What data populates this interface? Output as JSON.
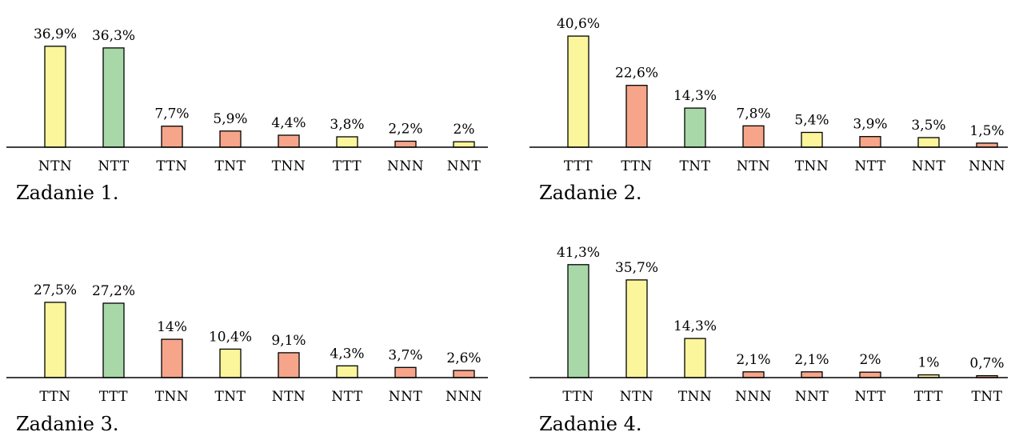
{
  "colors": {
    "yellow": "#fbf59b",
    "green": "#a8d8a8",
    "red": "#f6a58a"
  },
  "chart_data": [
    {
      "type": "bar",
      "caption": "Zadanie 1.",
      "categories": [
        "NTN",
        "NTT",
        "TTN",
        "TNT",
        "TNN",
        "TTT",
        "NNN",
        "NNT"
      ],
      "values": [
        36.9,
        36.3,
        7.7,
        5.9,
        4.4,
        3.8,
        2.2,
        2.0
      ],
      "labels": [
        "36,9%",
        "36,3%",
        "7,7%",
        "5,9%",
        "4,4%",
        "3,8%",
        "2,2%",
        "2%"
      ],
      "colors": [
        "yellow",
        "green",
        "red",
        "red",
        "red",
        "yellow",
        "red",
        "yellow"
      ]
    },
    {
      "type": "bar",
      "caption": "Zadanie 2.",
      "categories": [
        "TTT",
        "TTN",
        "TNT",
        "NTN",
        "TNN",
        "NTT",
        "NNT",
        "NNN"
      ],
      "values": [
        40.6,
        22.6,
        14.3,
        7.8,
        5.4,
        3.9,
        3.5,
        1.5
      ],
      "labels": [
        "40,6%",
        "22,6%",
        "14,3%",
        "7,8%",
        "5,4%",
        "3,9%",
        "3,5%",
        "1,5%"
      ],
      "colors": [
        "yellow",
        "red",
        "green",
        "red",
        "yellow",
        "red",
        "yellow",
        "red"
      ]
    },
    {
      "type": "bar",
      "caption": "Zadanie 3.",
      "categories": [
        "TTN",
        "TTT",
        "TNN",
        "TNT",
        "NTN",
        "NTT",
        "NNT",
        "NNN"
      ],
      "values": [
        27.5,
        27.2,
        14.0,
        10.4,
        9.1,
        4.3,
        3.7,
        2.6
      ],
      "labels": [
        "27,5%",
        "27,2%",
        "14%",
        "10,4%",
        "9,1%",
        "4,3%",
        "3,7%",
        "2,6%"
      ],
      "colors": [
        "yellow",
        "green",
        "red",
        "yellow",
        "red",
        "yellow",
        "red",
        "red"
      ]
    },
    {
      "type": "bar",
      "caption": "Zadanie 4.",
      "categories": [
        "TTN",
        "NTN",
        "TNN",
        "NNN",
        "NNT",
        "NTT",
        "TTT",
        "TNT"
      ],
      "values": [
        41.3,
        35.7,
        14.3,
        2.1,
        2.1,
        2.0,
        1.0,
        0.7
      ],
      "labels": [
        "41,3%",
        "35,7%",
        "14,3%",
        "2,1%",
        "2,1%",
        "2%",
        "1%",
        "0,7%"
      ],
      "colors": [
        "green",
        "yellow",
        "yellow",
        "red",
        "red",
        "red",
        "yellow",
        "red"
      ]
    }
  ]
}
